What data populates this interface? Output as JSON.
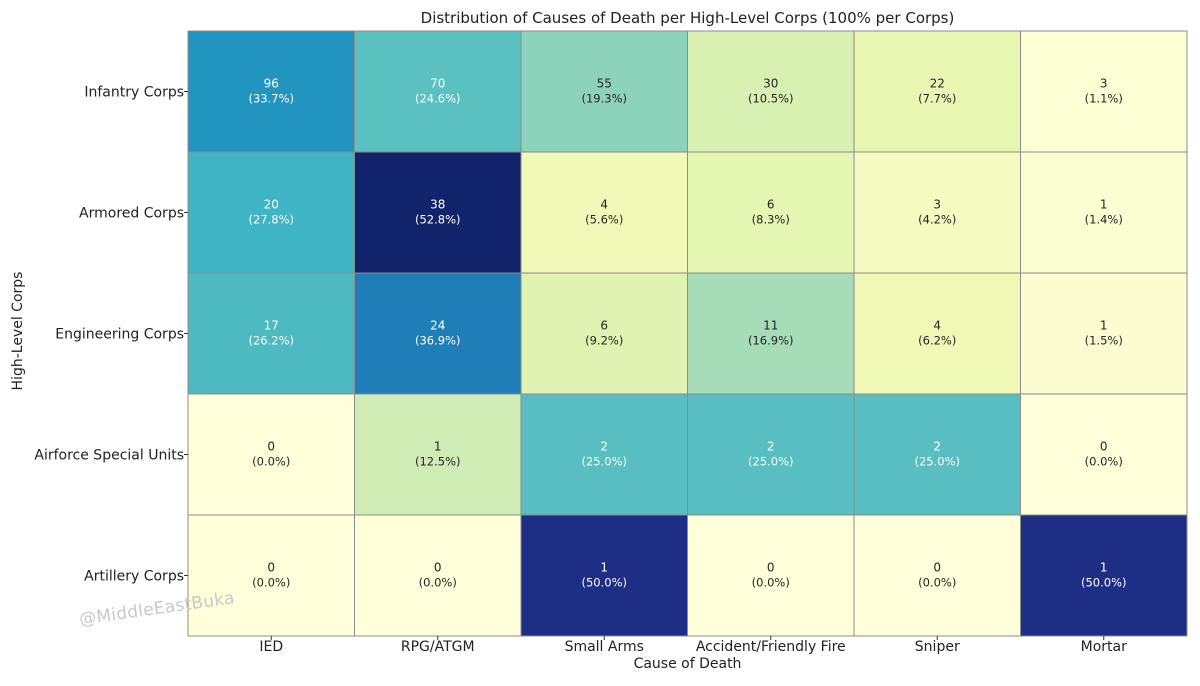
{
  "chart_data": {
    "type": "heatmap",
    "title": "Distribution of Causes of Death per High-Level Corps (100% per Corps)",
    "xlabel": "Cause of Death",
    "ylabel": "High-Level Corps",
    "columns": [
      "IED",
      "RPG/ATGM",
      "Small Arms",
      "Accident/Friendly Fire",
      "Sniper",
      "Mortar"
    ],
    "rows": [
      "Infantry Corps",
      "Armored Corps",
      "Engineering Corps",
      "Airforce Special Units",
      "Artillery Corps"
    ],
    "counts": [
      [
        96,
        70,
        55,
        30,
        22,
        3
      ],
      [
        20,
        38,
        4,
        6,
        3,
        1
      ],
      [
        17,
        24,
        6,
        11,
        4,
        1
      ],
      [
        0,
        1,
        2,
        2,
        2,
        0
      ],
      [
        0,
        0,
        1,
        0,
        0,
        1
      ]
    ],
    "percents": [
      [
        "33.7%",
        "24.6%",
        "19.3%",
        "10.5%",
        "7.7%",
        "1.1%"
      ],
      [
        "27.8%",
        "52.8%",
        "5.6%",
        "8.3%",
        "4.2%",
        "1.4%"
      ],
      [
        "26.2%",
        "36.9%",
        "9.2%",
        "16.9%",
        "6.2%",
        "1.5%"
      ],
      [
        "0.0%",
        "12.5%",
        "25.0%",
        "25.0%",
        "25.0%",
        "0.0%"
      ],
      [
        "0.0%",
        "0.0%",
        "50.0%",
        "0.0%",
        "0.0%",
        "50.0%"
      ]
    ],
    "colormap": "YlGnBu",
    "value_range": [
      0,
      55
    ]
  },
  "watermark": "@MiddleEastBuka"
}
